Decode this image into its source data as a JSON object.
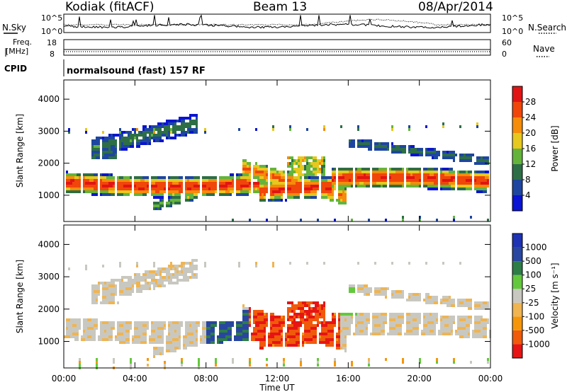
{
  "header": {
    "radar": "Kodiak (fitACF)",
    "beam": "Beam 13",
    "date": "08/Apr/2014"
  },
  "top_panels": {
    "nsky_label": "N.Sky",
    "nsky_ticks": [
      "10^5",
      "10^0"
    ],
    "nsearch_label": "N.Search",
    "nsearch_ticks": [
      "10^5",
      "10^0"
    ],
    "freq_label_line1": "Freq.",
    "freq_label_line2": "[MHz]",
    "freq_ticks": [
      "18",
      "8"
    ],
    "nave_label": "Nave",
    "nave_ticks": [
      "60",
      "0"
    ],
    "cpid_label": "CPID",
    "cpid_text": "normalsound (fast) 157 RF"
  },
  "colors": {
    "power_scale": [
      "#0a14d2",
      "#1e46a0",
      "#2d6e46",
      "#64b43c",
      "#e6c81e",
      "#f58c0a",
      "#f0460a",
      "#e11414"
    ],
    "velocity_scale": [
      "#e61414",
      "#f05a0a",
      "#f5960a",
      "#f0b450",
      "#c8c8c0",
      "#64c83c",
      "#2d7d46",
      "#2846a0",
      "#1e32b4"
    ]
  },
  "chart_data": [
    {
      "type": "heatmap",
      "name": "power",
      "xlabel": "",
      "ylabel": "Slant Range [km]",
      "x_ticks": [
        "00:00",
        "04:00",
        "08:00",
        "12:00",
        "16:00",
        "20:00",
        "00:00"
      ],
      "x_range_hours": [
        0,
        24
      ],
      "y_ticks": [
        1000,
        2000,
        3000,
        4000
      ],
      "ylim": [
        180,
        4600
      ],
      "colorbar_label": "Power [dB]",
      "colorbar_ticks": [
        4,
        8,
        12,
        16,
        20,
        24,
        28
      ],
      "colorbar_range": [
        0,
        32
      ],
      "features": [
        {
          "feature": "main_band",
          "hours": [
            0,
            24
          ],
          "range_km": [
            1000,
            1750
          ],
          "peak_power_db": 30
        },
        {
          "feature": "arc_early",
          "hours": [
            1.5,
            7
          ],
          "range_km": [
            2300,
            3500
          ],
          "peak_power_db": 16
        },
        {
          "feature": "descending_band",
          "hours": [
            5,
            10
          ],
          "range_km": [
            700,
            1600
          ],
          "peak_power_db": 20
        },
        {
          "feature": "midday_cluster",
          "hours": [
            10,
            16
          ],
          "range_km": [
            900,
            2300
          ],
          "peak_power_db": 28
        },
        {
          "feature": "upper_band_late",
          "hours": [
            16,
            24
          ],
          "range_km": [
            1900,
            2600
          ],
          "peak_power_db": 14
        }
      ]
    },
    {
      "type": "heatmap",
      "name": "velocity",
      "xlabel": "Time UT",
      "ylabel": "Slant Range [km]",
      "x_ticks": [
        "00:00",
        "04:00",
        "08:00",
        "12:00",
        "16:00",
        "20:00",
        "00:00"
      ],
      "x_range_hours": [
        0,
        24
      ],
      "y_ticks": [
        1000,
        2000,
        3000,
        4000
      ],
      "ylim": [
        180,
        4600
      ],
      "colorbar_label": "Velocity [m s⁻¹]",
      "colorbar_ticks": [
        "1000",
        "500",
        "100",
        "25",
        "-25",
        "-100",
        "-500",
        "-1000"
      ],
      "features": [
        {
          "feature": "ground_scatter_band",
          "hours": [
            0,
            24
          ],
          "range_km": [
            1100,
            1800
          ],
          "velocity_ms": 0
        },
        {
          "feature": "toward_cluster",
          "hours": [
            8,
            10
          ],
          "range_km": [
            1000,
            2000
          ],
          "velocity_ms": 500
        },
        {
          "feature": "away_cluster",
          "hours": [
            10,
            15.5
          ],
          "range_km": [
            800,
            2300
          ],
          "velocity_ms": -300
        }
      ]
    }
  ]
}
